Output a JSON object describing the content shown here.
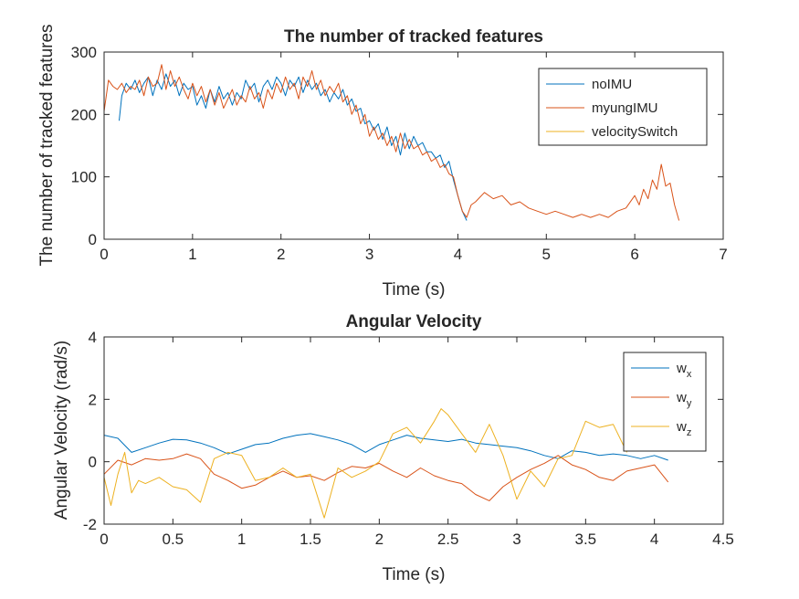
{
  "chart_data": [
    {
      "type": "line",
      "title": "The number of tracked features",
      "xlabel": "Time (s)",
      "ylabel": "The number of tracked features",
      "xlim": [
        0,
        7
      ],
      "ylim": [
        0,
        300
      ],
      "xticks": [
        0,
        1,
        2,
        3,
        4,
        5,
        6,
        7
      ],
      "yticks": [
        0,
        100,
        200,
        300
      ],
      "legend": "top-right",
      "series": [
        {
          "name": "noIMU",
          "color": "#0072BD",
          "x": [
            0.17,
            0.2,
            0.25,
            0.3,
            0.35,
            0.4,
            0.45,
            0.5,
            0.55,
            0.6,
            0.65,
            0.7,
            0.75,
            0.8,
            0.85,
            0.9,
            0.95,
            1.0,
            1.05,
            1.1,
            1.15,
            1.2,
            1.25,
            1.3,
            1.35,
            1.4,
            1.45,
            1.5,
            1.55,
            1.6,
            1.65,
            1.7,
            1.75,
            1.8,
            1.85,
            1.9,
            1.95,
            2.0,
            2.05,
            2.1,
            2.15,
            2.2,
            2.25,
            2.3,
            2.35,
            2.4,
            2.45,
            2.5,
            2.55,
            2.6,
            2.65,
            2.7,
            2.75,
            2.8,
            2.85,
            2.9,
            2.95,
            3.0,
            3.05,
            3.1,
            3.15,
            3.2,
            3.25,
            3.3,
            3.35,
            3.4,
            3.45,
            3.5,
            3.55,
            3.6,
            3.65,
            3.7,
            3.75,
            3.8,
            3.85,
            3.9,
            3.95,
            4.0,
            4.05,
            4.1
          ],
          "values": [
            190,
            230,
            250,
            240,
            255,
            235,
            250,
            260,
            230,
            255,
            240,
            265,
            245,
            255,
            230,
            250,
            240,
            245,
            215,
            230,
            210,
            240,
            220,
            245,
            225,
            235,
            215,
            235,
            225,
            255,
            240,
            250,
            220,
            245,
            255,
            240,
            260,
            250,
            230,
            255,
            245,
            260,
            235,
            255,
            240,
            250,
            230,
            240,
            220,
            235,
            225,
            240,
            215,
            225,
            205,
            210,
            185,
            190,
            175,
            185,
            160,
            180,
            150,
            165,
            135,
            170,
            145,
            165,
            150,
            155,
            140,
            140,
            130,
            135,
            115,
            125,
            95,
            70,
            45,
            30
          ]
        },
        {
          "name": "myungIMU",
          "color": "#D95319",
          "x": [
            0.0,
            0.05,
            0.1,
            0.15,
            0.2,
            0.25,
            0.3,
            0.35,
            0.4,
            0.45,
            0.5,
            0.55,
            0.6,
            0.65,
            0.7,
            0.75,
            0.8,
            0.85,
            0.9,
            0.95,
            1.0,
            1.05,
            1.1,
            1.15,
            1.2,
            1.25,
            1.3,
            1.35,
            1.4,
            1.45,
            1.5,
            1.55,
            1.6,
            1.65,
            1.7,
            1.75,
            1.8,
            1.85,
            1.9,
            1.95,
            2.0,
            2.05,
            2.1,
            2.15,
            2.2,
            2.25,
            2.3,
            2.35,
            2.4,
            2.45,
            2.5,
            2.55,
            2.6,
            2.65,
            2.7,
            2.75,
            2.8,
            2.85,
            2.9,
            2.95,
            3.0,
            3.05,
            3.1,
            3.15,
            3.2,
            3.25,
            3.3,
            3.35,
            3.4,
            3.45,
            3.5,
            3.55,
            3.6,
            3.65,
            3.7,
            3.75,
            3.8,
            3.85,
            3.9,
            3.95,
            4.0,
            4.05,
            4.1,
            4.15,
            4.2,
            4.3,
            4.4,
            4.5,
            4.6,
            4.7,
            4.8,
            4.9,
            5.0,
            5.1,
            5.2,
            5.3,
            5.4,
            5.5,
            5.6,
            5.7,
            5.8,
            5.9,
            6.0,
            6.05,
            6.1,
            6.15,
            6.2,
            6.25,
            6.3,
            6.35,
            6.4,
            6.45,
            6.5
          ],
          "values": [
            205,
            255,
            245,
            240,
            250,
            235,
            245,
            240,
            255,
            230,
            260,
            245,
            250,
            280,
            240,
            270,
            245,
            260,
            240,
            225,
            250,
            230,
            245,
            220,
            240,
            215,
            235,
            210,
            225,
            240,
            215,
            230,
            220,
            245,
            225,
            235,
            210,
            240,
            225,
            250,
            235,
            260,
            240,
            250,
            225,
            260,
            245,
            270,
            240,
            255,
            230,
            245,
            235,
            250,
            220,
            230,
            200,
            215,
            185,
            200,
            165,
            180,
            160,
            170,
            150,
            165,
            140,
            170,
            145,
            160,
            145,
            150,
            135,
            140,
            125,
            130,
            115,
            120,
            105,
            100,
            70,
            45,
            35,
            55,
            60,
            75,
            65,
            70,
            55,
            60,
            50,
            45,
            40,
            45,
            40,
            35,
            40,
            35,
            40,
            35,
            45,
            50,
            70,
            55,
            80,
            65,
            95,
            80,
            120,
            85,
            90,
            55,
            30
          ]
        },
        {
          "name": "velocitySwitch",
          "color": "#EDB120",
          "x": [
            0.17,
            4.1
          ],
          "values": [
            0,
            0
          ]
        }
      ]
    },
    {
      "type": "line",
      "title": "Angular Velocity",
      "xlabel": "Time (s)",
      "ylabel": "Angular Velocity (rad/s)",
      "xlim": [
        0,
        4.5
      ],
      "ylim": [
        -2,
        4
      ],
      "xticks": [
        0,
        0.5,
        1,
        1.5,
        2,
        2.5,
        3,
        3.5,
        4,
        4.5
      ],
      "xtick_labels": [
        "0",
        "0.5",
        "1",
        "1.5",
        "2",
        "2.5",
        "3",
        "3.5",
        "4",
        "4.5"
      ],
      "yticks": [
        -2,
        0,
        2,
        4
      ],
      "legend": "top-right",
      "series": [
        {
          "name": "w",
          "subscript": "x",
          "color": "#0072BD",
          "x": [
            0.0,
            0.1,
            0.2,
            0.3,
            0.4,
            0.5,
            0.6,
            0.7,
            0.8,
            0.9,
            1.0,
            1.1,
            1.2,
            1.3,
            1.4,
            1.5,
            1.6,
            1.7,
            1.8,
            1.9,
            2.0,
            2.1,
            2.2,
            2.3,
            2.4,
            2.5,
            2.6,
            2.7,
            2.8,
            2.9,
            3.0,
            3.1,
            3.2,
            3.3,
            3.4,
            3.5,
            3.6,
            3.7,
            3.8,
            3.9,
            4.0,
            4.1
          ],
          "values": [
            0.85,
            0.75,
            0.3,
            0.45,
            0.6,
            0.72,
            0.7,
            0.6,
            0.45,
            0.25,
            0.4,
            0.55,
            0.6,
            0.75,
            0.85,
            0.9,
            0.8,
            0.7,
            0.55,
            0.3,
            0.55,
            0.7,
            0.85,
            0.75,
            0.7,
            0.65,
            0.72,
            0.6,
            0.55,
            0.5,
            0.45,
            0.35,
            0.2,
            0.1,
            0.35,
            0.3,
            0.2,
            0.25,
            0.2,
            0.1,
            0.2,
            0.05
          ]
        },
        {
          "name": "w",
          "subscript": "y",
          "color": "#D95319",
          "x": [
            0.0,
            0.1,
            0.2,
            0.3,
            0.4,
            0.5,
            0.6,
            0.7,
            0.8,
            0.9,
            1.0,
            1.1,
            1.2,
            1.3,
            1.4,
            1.5,
            1.6,
            1.7,
            1.8,
            1.9,
            2.0,
            2.1,
            2.2,
            2.3,
            2.4,
            2.5,
            2.6,
            2.7,
            2.8,
            2.9,
            3.0,
            3.1,
            3.2,
            3.3,
            3.4,
            3.5,
            3.6,
            3.7,
            3.8,
            3.9,
            4.0,
            4.1
          ],
          "values": [
            -0.4,
            0.05,
            -0.1,
            0.1,
            0.05,
            0.1,
            0.25,
            0.1,
            -0.4,
            -0.6,
            -0.85,
            -0.75,
            -0.5,
            -0.3,
            -0.5,
            -0.45,
            -0.6,
            -0.35,
            -0.15,
            -0.2,
            -0.05,
            -0.3,
            -0.5,
            -0.2,
            -0.45,
            -0.6,
            -0.7,
            -1.05,
            -1.25,
            -0.8,
            -0.5,
            -0.25,
            -0.05,
            0.2,
            -0.1,
            -0.25,
            -0.5,
            -0.6,
            -0.3,
            -0.2,
            -0.1,
            -0.65
          ]
        },
        {
          "name": "w",
          "subscript": "z",
          "color": "#EDB120",
          "x": [
            0.0,
            0.05,
            0.1,
            0.15,
            0.2,
            0.25,
            0.3,
            0.4,
            0.5,
            0.6,
            0.7,
            0.8,
            0.9,
            1.0,
            1.1,
            1.2,
            1.3,
            1.4,
            1.5,
            1.6,
            1.7,
            1.8,
            1.9,
            2.0,
            2.1,
            2.2,
            2.3,
            2.4,
            2.45,
            2.5,
            2.6,
            2.7,
            2.8,
            2.9,
            3.0,
            3.1,
            3.2,
            3.3,
            3.4,
            3.5,
            3.6,
            3.7,
            3.8
          ],
          "values": [
            -0.5,
            -1.4,
            -0.4,
            0.3,
            -1.0,
            -0.6,
            -0.7,
            -0.5,
            -0.8,
            -0.9,
            -1.3,
            0.1,
            0.3,
            0.2,
            -0.6,
            -0.5,
            -0.2,
            -0.5,
            -0.4,
            -1.8,
            -0.2,
            -0.5,
            -0.3,
            0.0,
            0.9,
            1.1,
            0.6,
            1.3,
            1.7,
            1.5,
            0.9,
            0.3,
            1.2,
            0.2,
            -1.2,
            -0.3,
            -0.8,
            0.1,
            0.2,
            1.3,
            1.1,
            1.2,
            0.3
          ]
        }
      ]
    }
  ]
}
